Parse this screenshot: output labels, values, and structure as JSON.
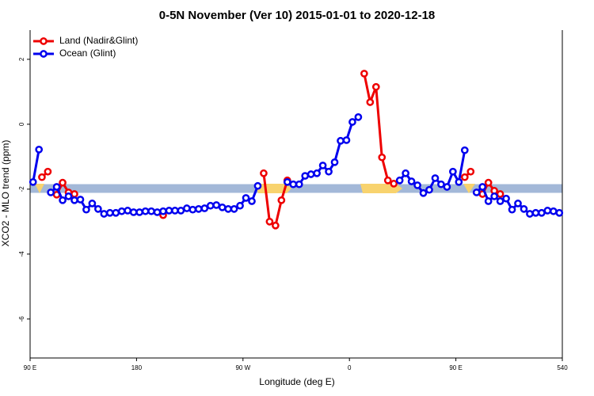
{
  "chart_data": {
    "type": "line",
    "title": "0-5N November (Ver 10)   2015-01-01 to 2020-12-18",
    "x_label": "Longitude (deg E)",
    "y_label": "XCO2 - MLO trend (ppm)",
    "xlim": [
      90,
      540
    ],
    "xticks": [
      {
        "value": 90,
        "label": "90 E"
      },
      180,
      {
        "value": 270,
        "label": "90 W"
      },
      {
        "value": 360,
        "label": "0"
      },
      {
        "value": 450,
        "label": "90 E"
      },
      540
    ],
    "ylim": [
      -7.2,
      2.9
    ],
    "yticks": [
      2,
      0,
      -2,
      -4,
      -6
    ],
    "legend": "top-left",
    "series": [
      {
        "name": "Land (Nadir&Glint)",
        "color": "#ee0000",
        "x": [
          100,
          105,
          112.5,
          117.5,
          122.5,
          127.5,
          202.5,
          287.5,
          292.5,
          297.5,
          302.5,
          307.5,
          372.5,
          377.5,
          382.5,
          387.5,
          392.5,
          397.5,
          457.5,
          462.5,
          472.5,
          477.5,
          482.5,
          487.5
        ],
        "values": [
          -1.63,
          -1.46,
          -2.17,
          -1.8,
          -2.1,
          -2.15,
          -2.8,
          -1.51,
          -3.0,
          -3.12,
          -2.34,
          -1.73,
          1.56,
          0.68,
          1.15,
          -1.02,
          -1.73,
          -1.83,
          -1.63,
          -1.46,
          -2.15,
          -1.8,
          -2.05,
          -2.15
        ]
      },
      {
        "name": "Ocean (Glint)",
        "color": "#0000ee",
        "x": [
          92.5,
          97.5,
          107.5,
          112.5,
          117.5,
          122.5,
          127.5,
          132.5,
          137.5,
          142.5,
          147.5,
          152.5,
          157.5,
          162.5,
          167.5,
          172.5,
          177.5,
          182.5,
          187.5,
          192.5,
          197.5,
          202.5,
          207.5,
          212.5,
          217.5,
          222.5,
          227.5,
          232.5,
          237.5,
          242.5,
          247.5,
          252.5,
          257.5,
          262.5,
          267.5,
          272.5,
          277.5,
          282.5,
          307.5,
          312.5,
          317.5,
          322.5,
          327.5,
          332.5,
          337.5,
          342.5,
          347.5,
          352.5,
          357.5,
          362.5,
          367.5,
          402.5,
          407.5,
          412.5,
          417.5,
          422.5,
          427.5,
          432.5,
          437.5,
          442.5,
          447.5,
          452.5,
          457.5,
          467.5,
          472.5,
          477.5,
          482.5,
          487.5,
          492.5,
          497.5,
          502.5,
          507.5,
          512.5,
          517.5,
          522.5,
          527.5,
          532.5,
          537.5
        ],
        "values": [
          -1.78,
          -0.78,
          -2.1,
          -1.93,
          -2.34,
          -2.22,
          -2.34,
          -2.32,
          -2.63,
          -2.44,
          -2.61,
          -2.76,
          -2.73,
          -2.73,
          -2.68,
          -2.66,
          -2.71,
          -2.71,
          -2.68,
          -2.68,
          -2.71,
          -2.68,
          -2.66,
          -2.66,
          -2.66,
          -2.59,
          -2.63,
          -2.61,
          -2.59,
          -2.51,
          -2.49,
          -2.56,
          -2.61,
          -2.61,
          -2.51,
          -2.27,
          -2.37,
          -1.9,
          -1.78,
          -1.85,
          -1.85,
          -1.59,
          -1.54,
          -1.51,
          -1.27,
          -1.46,
          -1.17,
          -0.51,
          -0.49,
          0.07,
          0.22,
          -1.73,
          -1.51,
          -1.76,
          -1.88,
          -2.12,
          -2.02,
          -1.66,
          -1.85,
          -1.93,
          -1.46,
          -1.78,
          -0.8,
          -2.1,
          -1.93,
          -2.37,
          -2.22,
          -2.37,
          -2.29,
          -2.63,
          -2.44,
          -2.61,
          -2.76,
          -2.73,
          -2.73,
          -2.66,
          -2.68,
          -2.73
        ]
      }
    ]
  }
}
